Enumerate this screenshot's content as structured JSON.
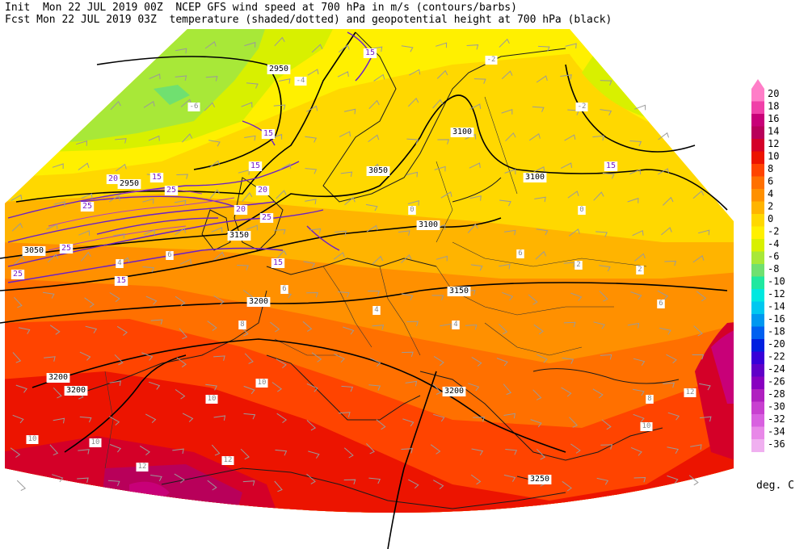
{
  "header": {
    "line1": "Init  Mon 22 JUL 2019 00Z  NCEP GFS wind speed at 700 hPa in m/s (contours/barbs)",
    "line2": "Fcst Mon 22 JUL 2019 03Z  temperature (shaded/dotted) and geopotential height at 700 hPa (black)"
  },
  "legend": {
    "units": "deg. C",
    "levels": [
      {
        "label": "20",
        "color": "#ff7ec8"
      },
      {
        "label": "18",
        "color": "#f040a8"
      },
      {
        "label": "16",
        "color": "#c80078"
      },
      {
        "label": "14",
        "color": "#b8005a"
      },
      {
        "label": "12",
        "color": "#d40028"
      },
      {
        "label": "10",
        "color": "#ec1400"
      },
      {
        "label": "8",
        "color": "#ff4400"
      },
      {
        "label": "6",
        "color": "#ff7000"
      },
      {
        "label": "4",
        "color": "#ff9000"
      },
      {
        "label": "2",
        "color": "#ffb400"
      },
      {
        "label": "0",
        "color": "#ffd800"
      },
      {
        "label": "-2",
        "color": "#fff000"
      },
      {
        "label": "-4",
        "color": "#d8f000"
      },
      {
        "label": "-6",
        "color": "#a8e838"
      },
      {
        "label": "-8",
        "color": "#70e070"
      },
      {
        "label": "-10",
        "color": "#20e8a0"
      },
      {
        "label": "-12",
        "color": "#00e8e0"
      },
      {
        "label": "-14",
        "color": "#00c8f0"
      },
      {
        "label": "-16",
        "color": "#0098f0"
      },
      {
        "label": "-18",
        "color": "#0060f0"
      },
      {
        "label": "-20",
        "color": "#0020e0"
      },
      {
        "label": "-22",
        "color": "#3800d8"
      },
      {
        "label": "-24",
        "color": "#6000c8"
      },
      {
        "label": "-26",
        "color": "#8800c0"
      },
      {
        "label": "-28",
        "color": "#b020c0"
      },
      {
        "label": "-30",
        "color": "#c840d0"
      },
      {
        "label": "-32",
        "color": "#d860e0"
      },
      {
        "label": "-34",
        "color": "#e888e8"
      },
      {
        "label": "-36",
        "color": "#f0b0f0"
      }
    ]
  },
  "height_labels": [
    {
      "text": "2950"
    },
    {
      "text": "2950"
    },
    {
      "text": "3050"
    },
    {
      "text": "3050"
    },
    {
      "text": "3100"
    },
    {
      "text": "3100"
    },
    {
      "text": "3100"
    },
    {
      "text": "3150"
    },
    {
      "text": "3150"
    },
    {
      "text": "3200"
    },
    {
      "text": "3200"
    },
    {
      "text": "3200"
    },
    {
      "text": "3200"
    },
    {
      "text": "3250"
    }
  ],
  "wind_labels": [
    {
      "text": "15"
    },
    {
      "text": "15"
    },
    {
      "text": "15"
    },
    {
      "text": "15"
    },
    {
      "text": "15"
    },
    {
      "text": "15"
    },
    {
      "text": "20"
    },
    {
      "text": "20"
    },
    {
      "text": "20"
    },
    {
      "text": "25"
    },
    {
      "text": "25"
    },
    {
      "text": "25"
    },
    {
      "text": "25"
    },
    {
      "text": "25"
    },
    {
      "text": "15"
    }
  ],
  "temp_labels": [
    {
      "text": "-6"
    },
    {
      "text": "-4"
    },
    {
      "text": "-2"
    },
    {
      "text": "-2"
    },
    {
      "text": "0"
    },
    {
      "text": "0"
    },
    {
      "text": "2"
    },
    {
      "text": "2"
    },
    {
      "text": "4"
    },
    {
      "text": "4"
    },
    {
      "text": "6"
    },
    {
      "text": "6"
    },
    {
      "text": "6"
    },
    {
      "text": "8"
    },
    {
      "text": "8"
    },
    {
      "text": "10"
    },
    {
      "text": "10"
    },
    {
      "text": "10"
    },
    {
      "text": "10"
    },
    {
      "text": "10"
    },
    {
      "text": "12"
    },
    {
      "text": "12"
    },
    {
      "text": "12"
    },
    {
      "text": "4"
    },
    {
      "text": "6"
    }
  ]
}
